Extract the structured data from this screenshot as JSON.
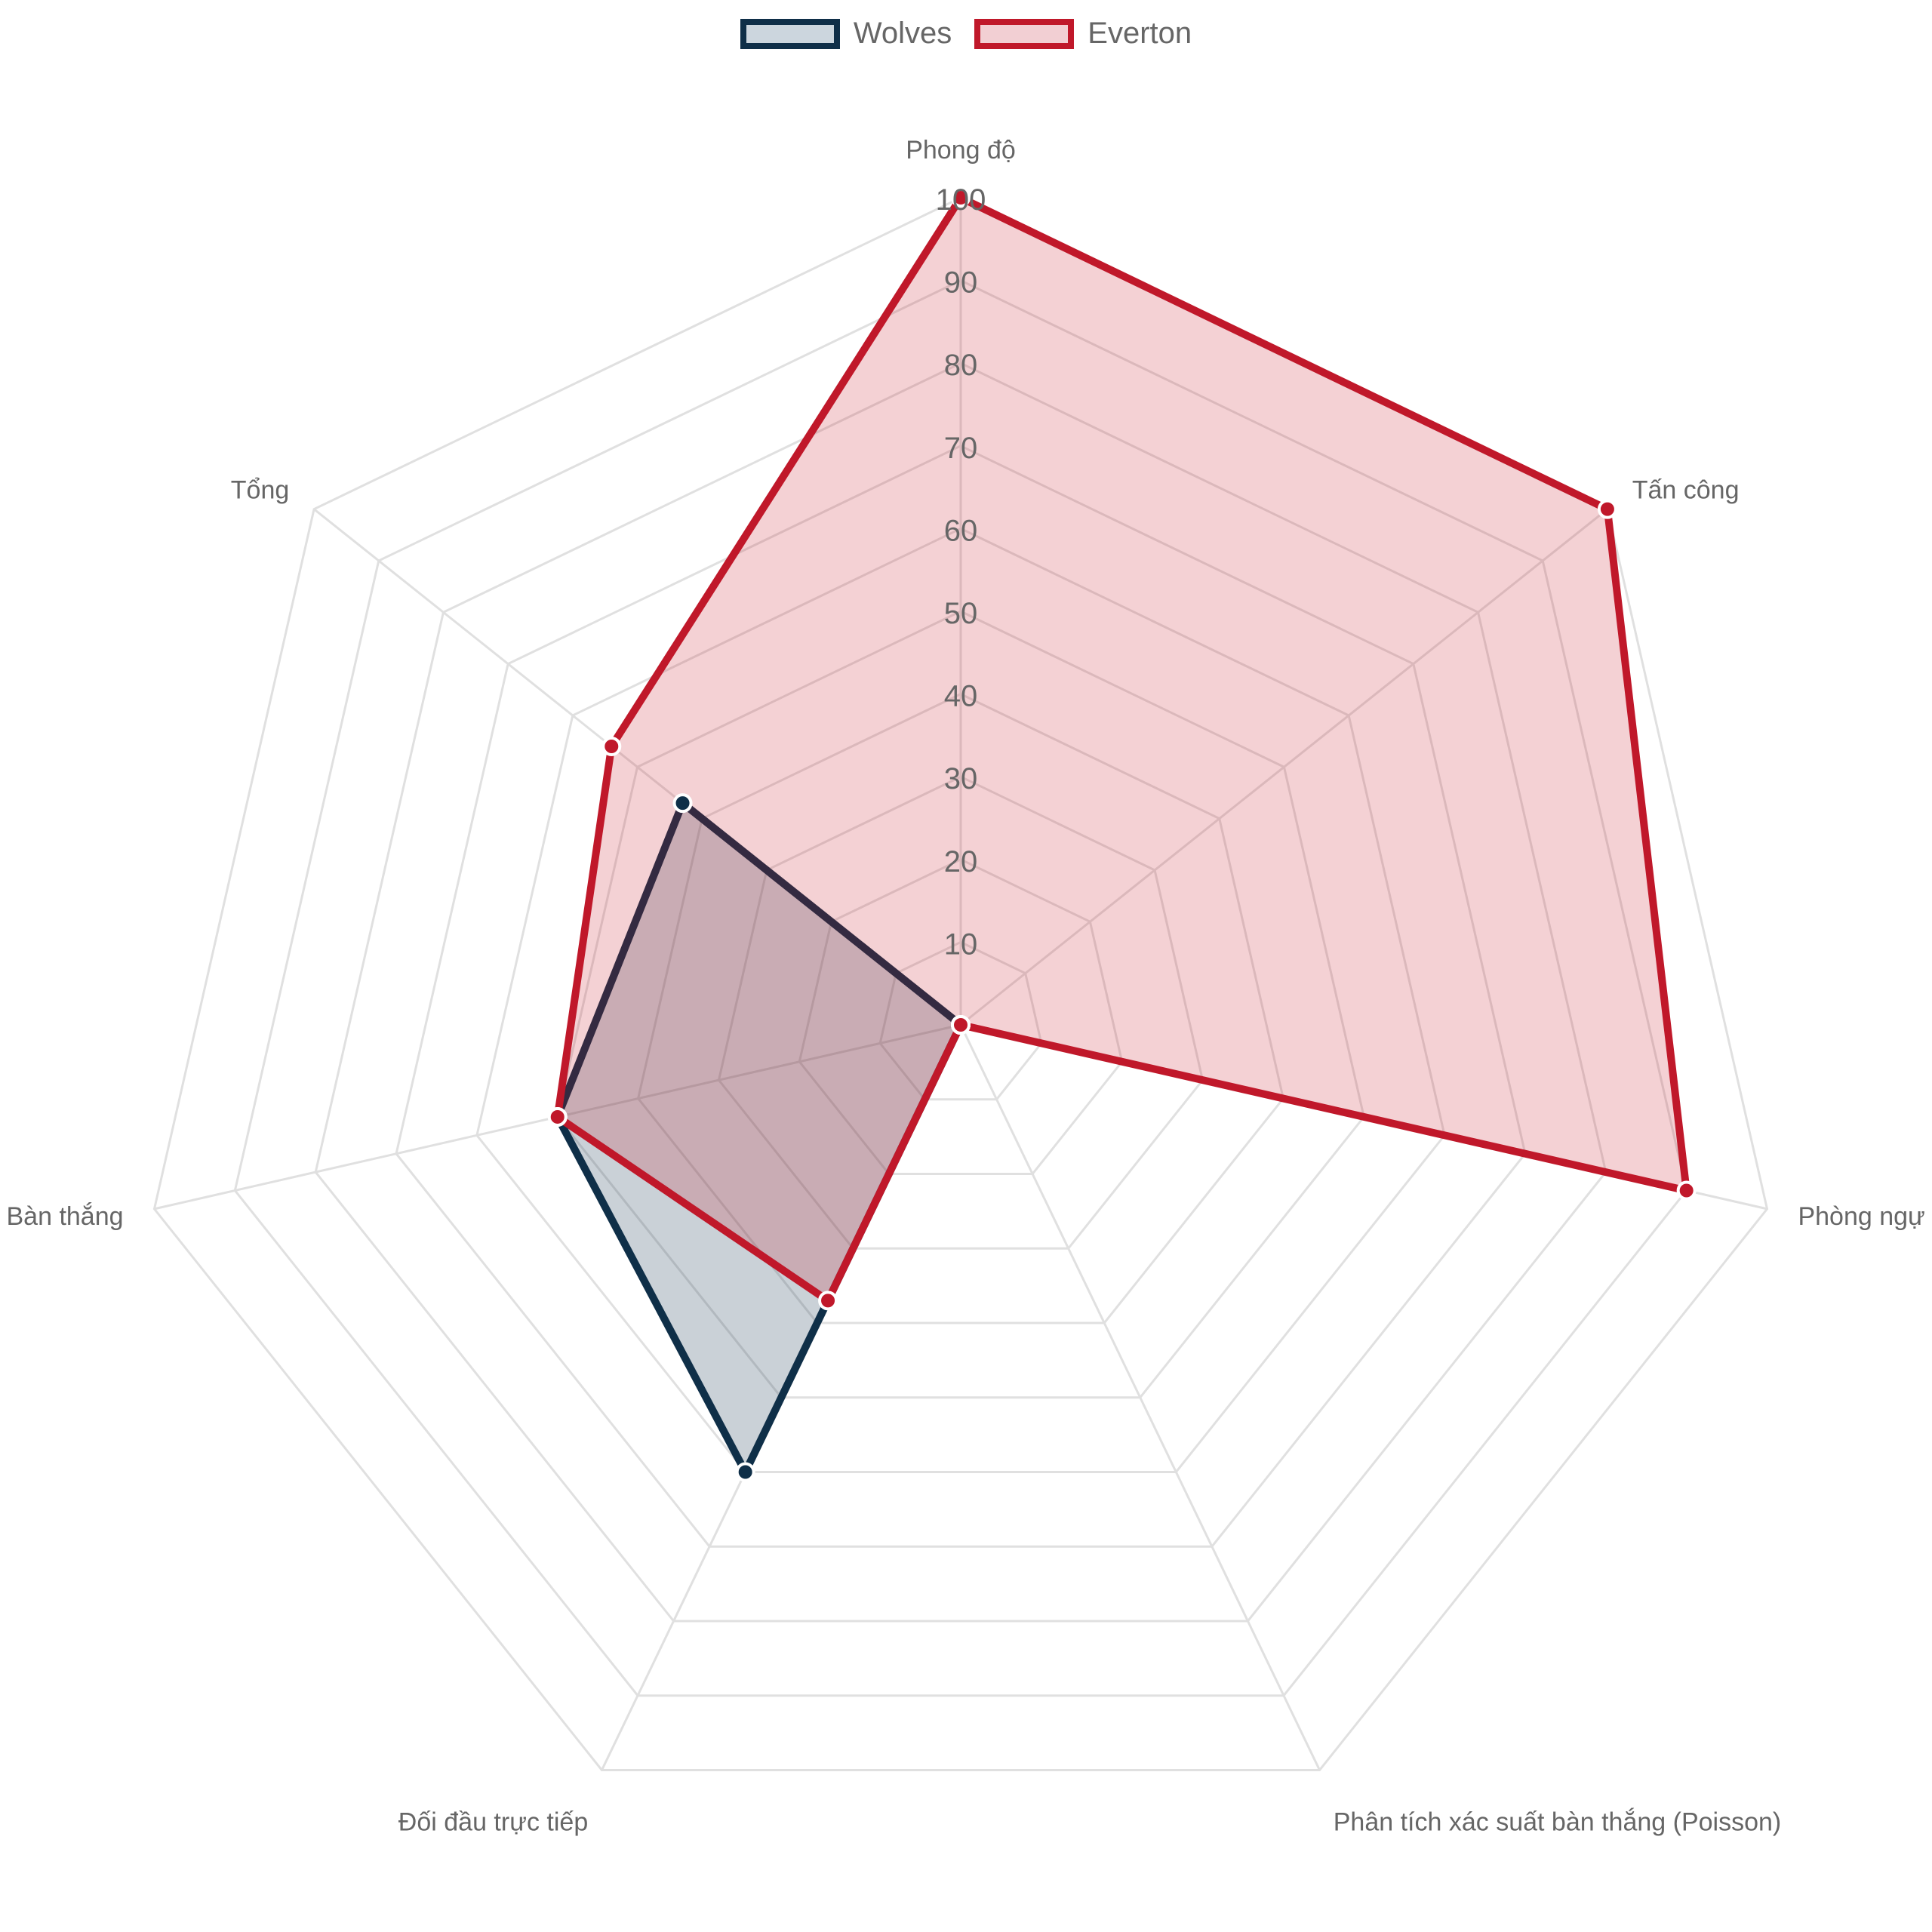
{
  "colors": {
    "grid": "#e0e0e0",
    "label_text": "#666666",
    "tick_text": "#666666"
  },
  "legend": {
    "items": [
      {
        "label": "Wolves",
        "stroke": "#0f2f48",
        "fill": "#ccd6de"
      },
      {
        "label": "Everton",
        "stroke": "#c0182a",
        "fill": "#f2cfd3"
      }
    ]
  },
  "chart_data": {
    "type": "radar",
    "title": "",
    "axes": [
      "Phong độ",
      "Tấn công",
      "Phòng ngự",
      "Phân tích xác suất bàn thắng (Poisson)",
      "Đối đầu trực tiếp",
      "Bàn thắng",
      "Tổng"
    ],
    "r_range": [
      0,
      100
    ],
    "r_ticks": [
      "10",
      "20",
      "30",
      "40",
      "50",
      "60",
      "70",
      "80",
      "90",
      "100"
    ],
    "grid": true,
    "legend_position": "top-center",
    "series": [
      {
        "name": "Wolves",
        "values": [
          0,
          0,
          0,
          0,
          60,
          50,
          43
        ],
        "stroke": "#0f2f48",
        "fill": "rgba(15,47,72,0.22)"
      },
      {
        "name": "Everton",
        "values": [
          100,
          100,
          90,
          0,
          37,
          50,
          54
        ],
        "stroke": "#c0182a",
        "fill": "rgba(198,24,42,0.20)"
      }
    ]
  }
}
